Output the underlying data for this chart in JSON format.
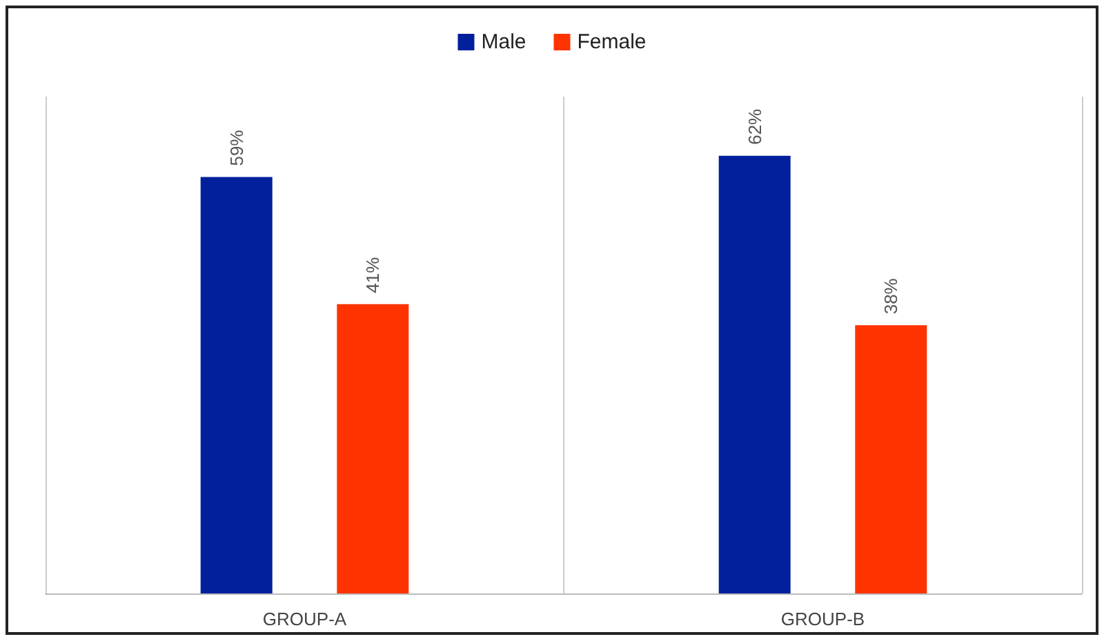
{
  "chart_data": {
    "type": "bar",
    "categories": [
      "GROUP-A",
      "GROUP-B"
    ],
    "series": [
      {
        "name": "Male",
        "color": "#02209c",
        "values": [
          59,
          62
        ],
        "value_labels": [
          "59%",
          "62%"
        ]
      },
      {
        "name": "Female",
        "color": "#fe3300",
        "values": [
          41,
          38
        ],
        "value_labels": [
          "41%",
          "38%"
        ]
      }
    ],
    "legend": "top"
  }
}
